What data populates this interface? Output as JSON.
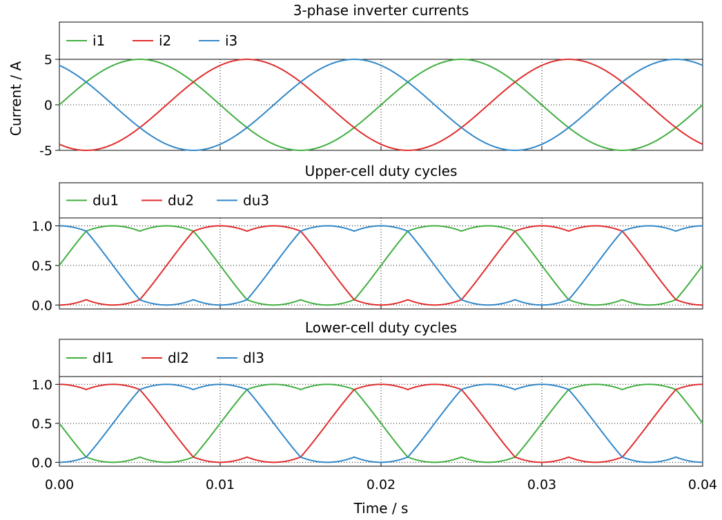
{
  "chart_data": [
    {
      "type": "line",
      "title": "3-phase inverter currents",
      "xlabel": "",
      "ylabel": "Current / A",
      "xlim": [
        0,
        0.04
      ],
      "ylim": [
        -5,
        5
      ],
      "yticks": [
        5,
        0,
        -5
      ],
      "ytick_labels": [
        "5",
        "0",
        "-5"
      ],
      "grid": true,
      "legend_position": "top, above plot area",
      "series": [
        {
          "name": "i1",
          "color": "#3fae3f",
          "func": "sin",
          "amplitude": 5,
          "frequency_hz": 50,
          "phase_deg": 0
        },
        {
          "name": "i2",
          "color": "#e02b2b",
          "func": "sin",
          "amplitude": 5,
          "frequency_hz": 50,
          "phase_deg": -120
        },
        {
          "name": "i3",
          "color": "#2f86c8",
          "func": "sin",
          "amplitude": 5,
          "frequency_hz": 50,
          "phase_deg": 120
        }
      ]
    },
    {
      "type": "line",
      "title": "Upper-cell duty cycles",
      "xlabel": "",
      "ylabel": "",
      "xlim": [
        0,
        0.04
      ],
      "ylim": [
        -0.05,
        1.1
      ],
      "yticks": [
        1.0,
        0.5,
        0.0
      ],
      "ytick_labels": [
        "1.0",
        "0.5",
        "0.0"
      ],
      "grid": true,
      "legend_position": "top, above plot area",
      "series": [
        {
          "name": "du1",
          "color": "#3fae3f",
          "func": "duty_upper",
          "frequency_hz": 50,
          "phase_deg": 0
        },
        {
          "name": "du2",
          "color": "#e02b2b",
          "func": "duty_upper",
          "frequency_hz": 50,
          "phase_deg": -120
        },
        {
          "name": "du3",
          "color": "#2f86c8",
          "func": "duty_upper",
          "frequency_hz": 50,
          "phase_deg": 120
        }
      ]
    },
    {
      "type": "line",
      "title": "Lower-cell duty cycles",
      "xlabel": "Time / s",
      "ylabel": "",
      "xlim": [
        0,
        0.04
      ],
      "ylim": [
        -0.05,
        1.1
      ],
      "xticks": [
        0.0,
        0.01,
        0.02,
        0.03,
        0.04
      ],
      "xtick_labels": [
        "0.00",
        "0.01",
        "0.02",
        "0.03",
        "0.04"
      ],
      "yticks": [
        1.0,
        0.5,
        0.0
      ],
      "ytick_labels": [
        "1.0",
        "0.5",
        "0.0"
      ],
      "grid": true,
      "legend_position": "top, above plot area",
      "series": [
        {
          "name": "dl1",
          "color": "#3fae3f",
          "func": "duty_lower",
          "frequency_hz": 50,
          "phase_deg": 0
        },
        {
          "name": "dl2",
          "color": "#e02b2b",
          "func": "duty_lower",
          "frequency_hz": 50,
          "phase_deg": -120
        },
        {
          "name": "dl3",
          "color": "#2f86c8",
          "func": "duty_lower",
          "frequency_hz": 50,
          "phase_deg": 120
        }
      ]
    }
  ]
}
